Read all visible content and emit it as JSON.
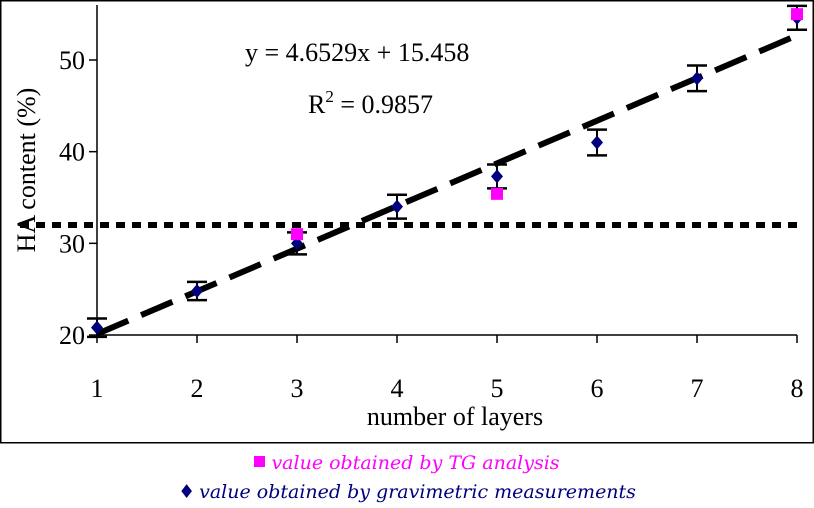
{
  "chart_data": {
    "type": "scatter",
    "xlabel": "number of layers",
    "ylabel": "HA content (%)",
    "xlim": [
      1,
      8
    ],
    "ylim": [
      20,
      55
    ],
    "x_ticks": [
      "1",
      "2",
      "3",
      "4",
      "5",
      "6",
      "7",
      "8"
    ],
    "y_ticks": [
      "20",
      "30",
      "40",
      "50"
    ],
    "grid": false,
    "series": [
      {
        "name": "value obtained by gravimetric measurements",
        "marker": "diamond",
        "color": "#00007f",
        "x": [
          1,
          2,
          3,
          4,
          5,
          6,
          7,
          8
        ],
        "y": [
          20.8,
          24.8,
          30.0,
          34.0,
          37.3,
          41.0,
          48.0,
          54.6
        ],
        "error": [
          1.0,
          1.0,
          1.2,
          1.3,
          1.3,
          1.4,
          1.4,
          1.3
        ]
      },
      {
        "name": "value obtained by TG analysis",
        "marker": "square",
        "color": "#ff00ff",
        "x": [
          3,
          5,
          8
        ],
        "y": [
          31.0,
          35.4,
          55.0
        ]
      }
    ],
    "trendline": {
      "slope": 4.6529,
      "intercept": 15.458,
      "equation": "y = 4.6529x + 15.458",
      "r2_prefix": "R",
      "r2_exp": "2",
      "r2_value": " = 0.9857"
    },
    "reference_line": {
      "y": 32
    }
  },
  "legend": {
    "tg_marker": "■",
    "tg_label": "value obtained by TG analysis",
    "grav_marker": "♦",
    "grav_label": "value obtained by gravimetric measurements"
  }
}
